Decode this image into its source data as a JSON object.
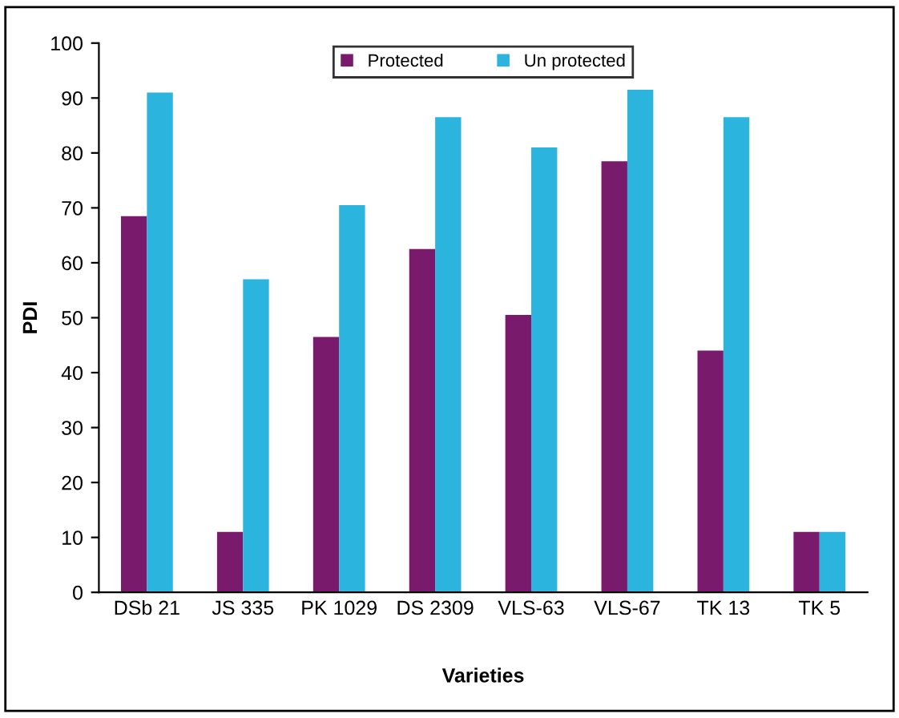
{
  "chart_data": {
    "type": "bar",
    "xlabel": "Varieties",
    "ylabel": "PDI",
    "categories": [
      "DSb 21",
      "JS 335",
      "PK 1029",
      "DS 2309",
      "VLS-63",
      "VLS-67",
      "TK 13",
      "TK 5"
    ],
    "series": [
      {
        "name": "Protected",
        "color": "#7a1a6c",
        "values": [
          68.5,
          11,
          46.5,
          62.5,
          50.5,
          78.5,
          44,
          11
        ]
      },
      {
        "name": "Un protected",
        "color": "#2ab4de",
        "values": [
          91,
          57,
          70.5,
          86.5,
          81,
          91.5,
          86.5,
          11
        ]
      }
    ],
    "ylim": [
      0,
      100
    ],
    "yticks": [
      0,
      10,
      20,
      30,
      40,
      50,
      60,
      70,
      80,
      90,
      100
    ],
    "grid": false,
    "legend": "top"
  }
}
